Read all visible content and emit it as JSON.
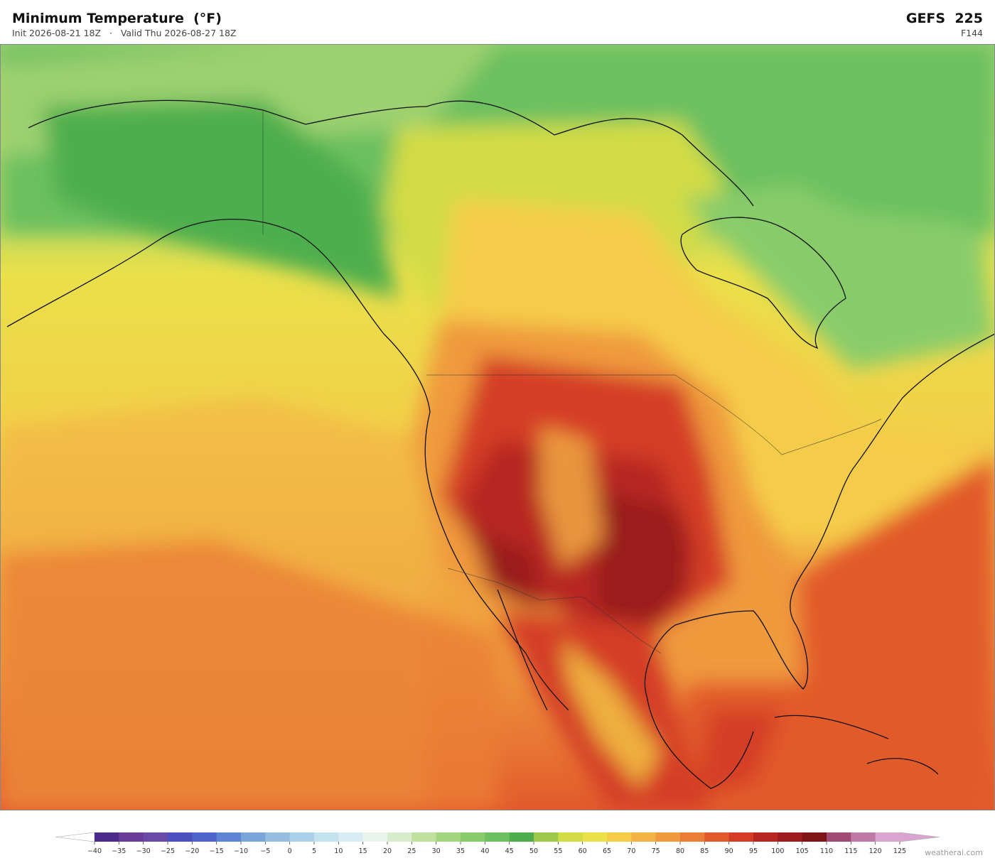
{
  "header": {
    "title": "Minimum Temperature  (°F)",
    "subtitle": "Init 2026-08-21 18Z   ·   Valid Thu 2026-08-27 18Z",
    "model": "GEFS  225",
    "forecast_hour": "F144"
  },
  "colorbar": {
    "ticks": [
      {
        "value": -40,
        "label": "−40"
      },
      {
        "value": -35,
        "label": "−35"
      },
      {
        "value": -30,
        "label": "−30"
      },
      {
        "value": -25,
        "label": "−25"
      },
      {
        "value": -20,
        "label": "−20"
      },
      {
        "value": -15,
        "label": "−15"
      },
      {
        "value": -10,
        "label": "−10"
      },
      {
        "value": -5,
        "label": "−5"
      },
      0,
      5,
      10,
      15,
      20,
      25,
      30,
      35,
      40,
      45,
      50,
      55,
      60,
      65,
      70,
      75,
      80,
      85,
      90,
      95,
      100,
      105,
      110,
      115,
      120,
      125
    ],
    "colors": [
      "#4b2a8c",
      "#6a3d9a",
      "#6a4aa8",
      "#4b4fc0",
      "#4e63cc",
      "#5f84d4",
      "#7aa5d8",
      "#95bde0",
      "#a9d0e8",
      "#c3e1ef",
      "#d8edf3",
      "#e8f4ec",
      "#d8eccc",
      "#c0e09e",
      "#a3d47e",
      "#88cc6a",
      "#6cc060",
      "#4eae4e",
      "#9cc94a",
      "#d2dc44",
      "#eae04a",
      "#f5cc48",
      "#f2b244",
      "#ef9a3e",
      "#eb7e36",
      "#e25a2c",
      "#d43c26",
      "#b82622",
      "#9a1c1e",
      "#7e1418",
      "#a04a74",
      "#c07aa8",
      "#d9a4d0"
    ],
    "under_color": "#ffffff",
    "over_color": "#d9a4d0"
  },
  "watermark": "weatherai.com"
}
